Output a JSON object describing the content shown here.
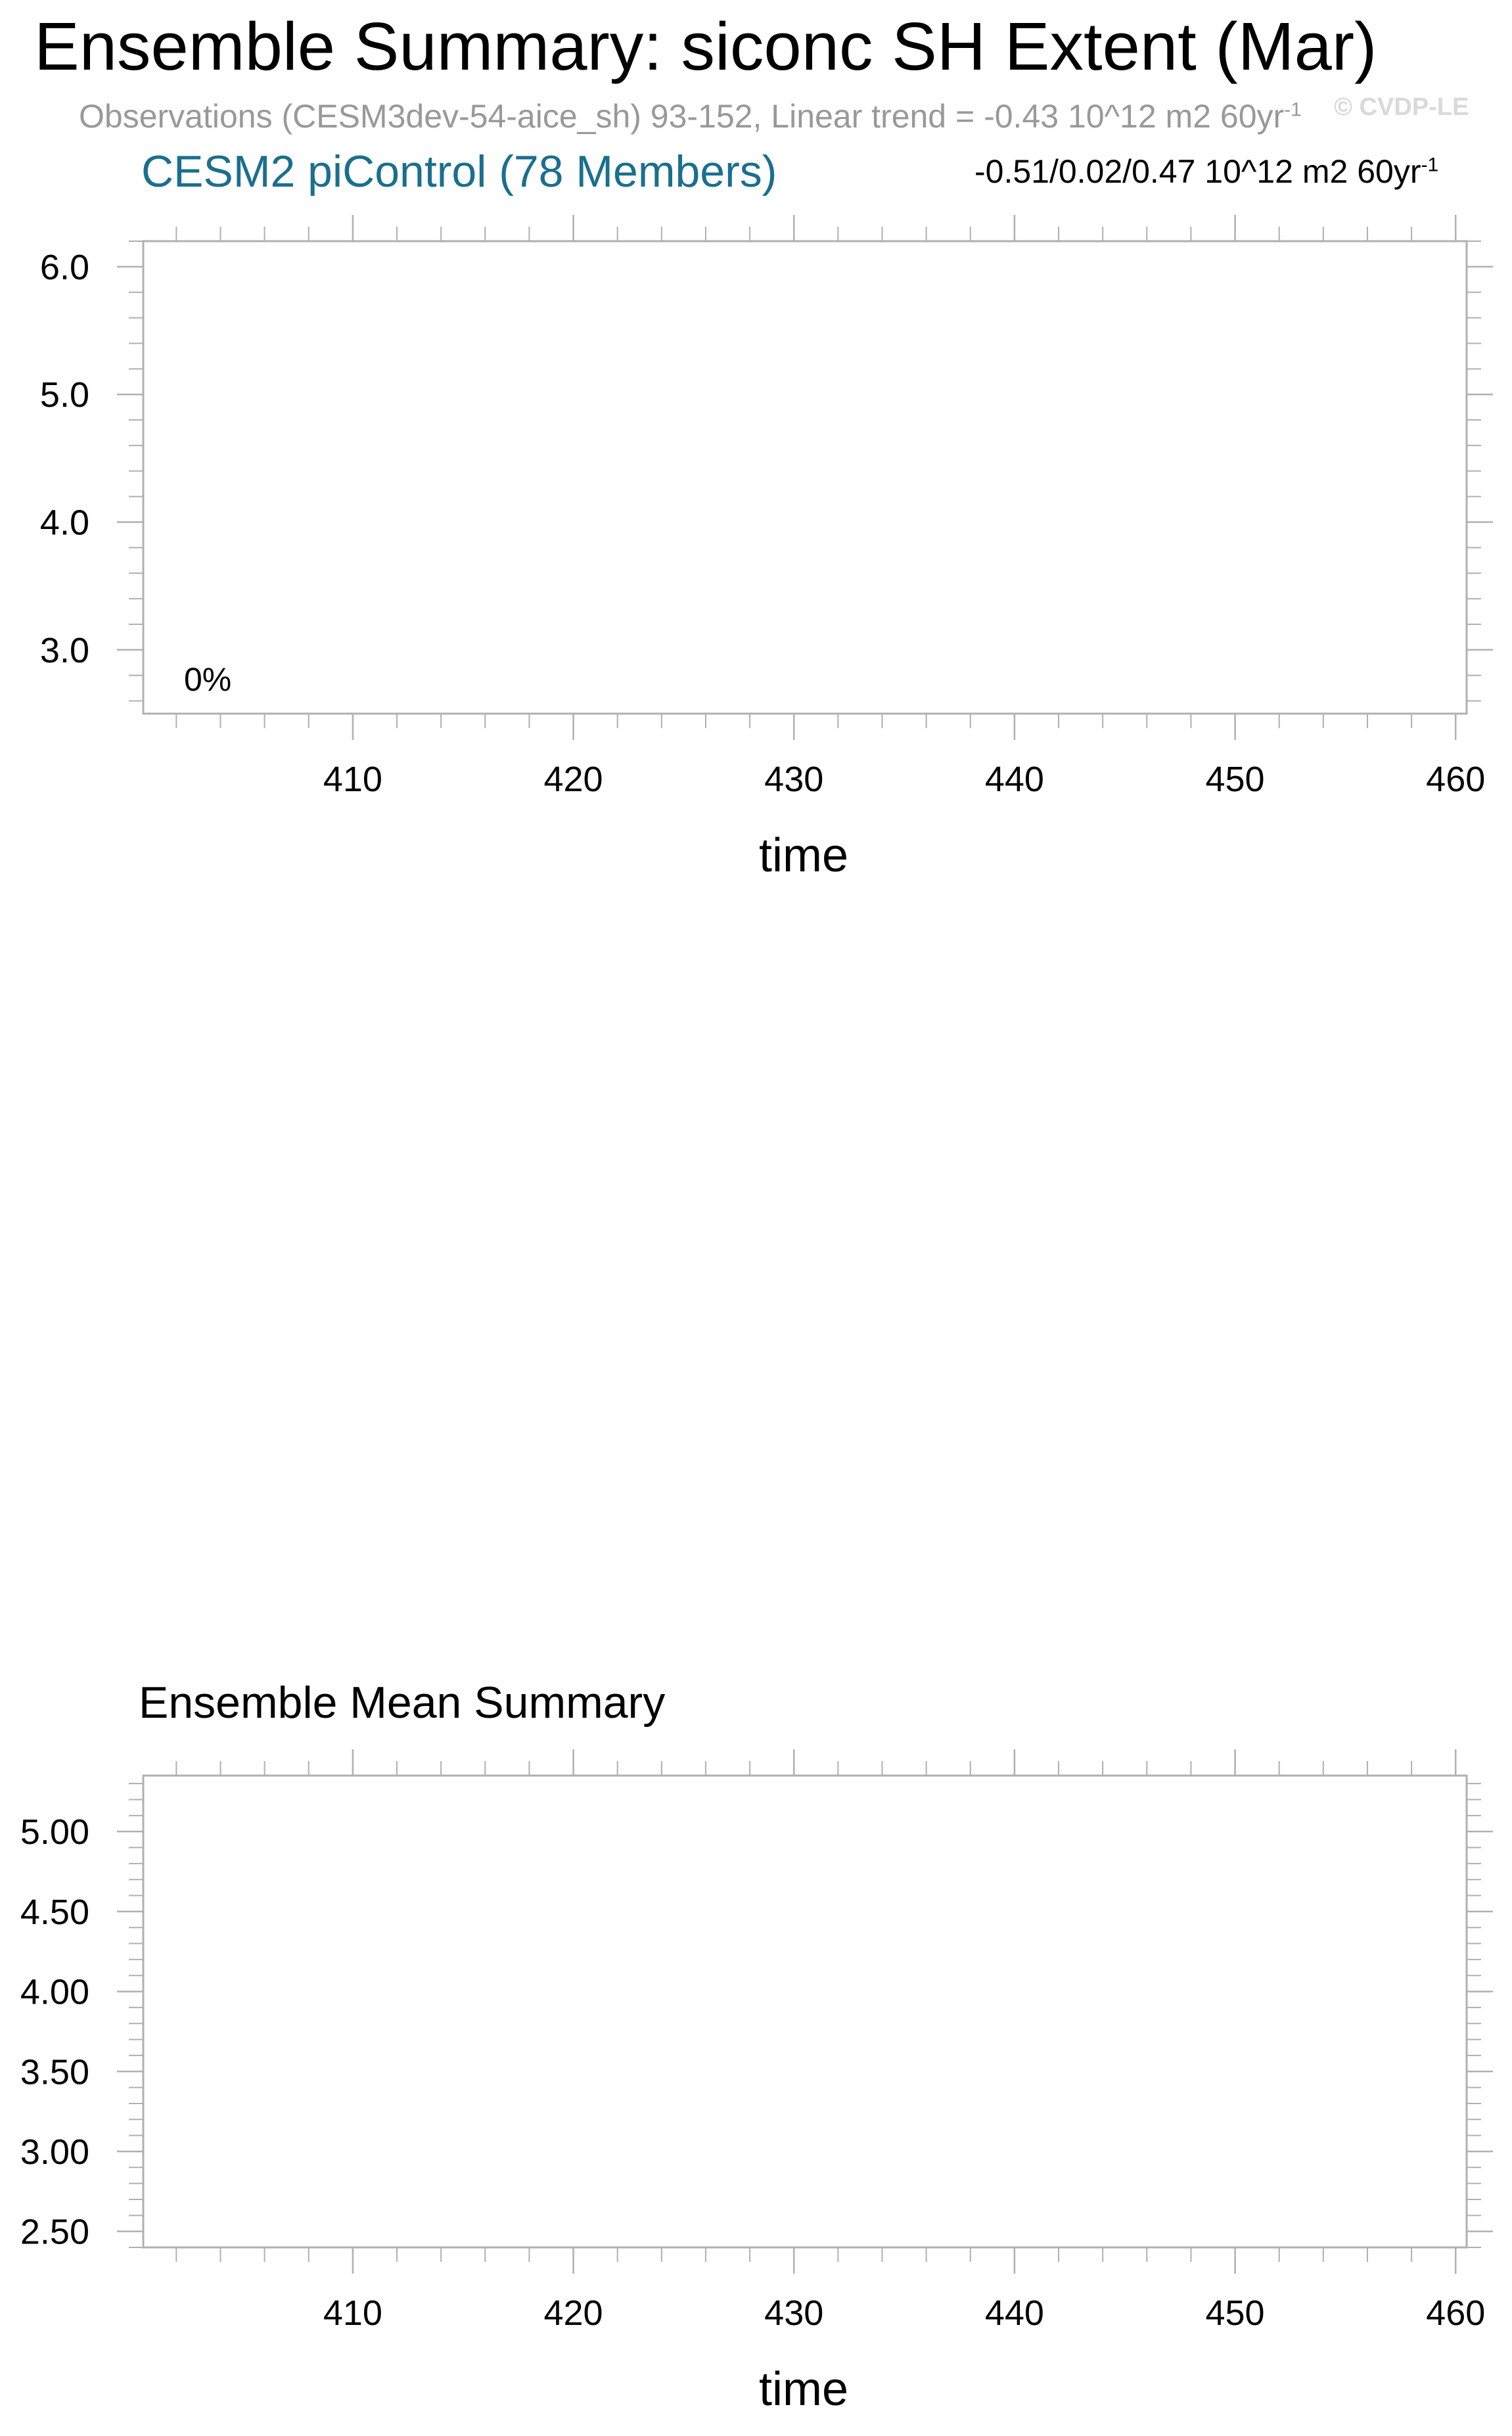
{
  "title": "Ensemble Summary: siconc SH Extent (Mar)",
  "observations": {
    "text": "Observations (CESM3dev-54-aice_sh) 93-152, Linear trend = -0.43 10^12 m2 60yr",
    "superscript": "-1"
  },
  "watermark": "© CVDP-LE",
  "model_label": "CESM2 piControl (78 Members)",
  "trend_range": {
    "text": "-0.51/0.02/0.47 10^12 m2 60yr",
    "superscript": "-1"
  },
  "mean_summary_title": "Ensemble Mean Summary",
  "colors": {
    "model_label": "#1a6f8f",
    "observations": "#999999",
    "frame": "#b0b0b0"
  },
  "chart_data": [
    {
      "type": "line",
      "title": "",
      "xlabel": "time",
      "ylabel": "",
      "xlim": [
        400.5,
        460.5
      ],
      "ylim": [
        2.5,
        6.2
      ],
      "xticks": [
        410,
        420,
        430,
        440,
        450,
        460
      ],
      "xtick_labels": [
        "410",
        "420",
        "430",
        "440",
        "450",
        "460"
      ],
      "yticks": [
        3.0,
        4.0,
        5.0,
        6.0
      ],
      "ytick_labels": [
        "3.0",
        "4.0",
        "5.0",
        "6.0"
      ],
      "annotation": "0%",
      "series": [],
      "grid": false
    },
    {
      "type": "line",
      "title": "Ensemble Mean Summary",
      "xlabel": "time",
      "ylabel": "",
      "xlim": [
        400.5,
        460.5
      ],
      "ylim": [
        2.4,
        5.35
      ],
      "xticks": [
        410,
        420,
        430,
        440,
        450,
        460
      ],
      "xtick_labels": [
        "410",
        "420",
        "430",
        "440",
        "450",
        "460"
      ],
      "yticks": [
        2.5,
        3.0,
        3.5,
        4.0,
        4.5,
        5.0
      ],
      "ytick_labels": [
        "2.50",
        "3.00",
        "3.50",
        "4.00",
        "4.50",
        "5.00"
      ],
      "annotation": "",
      "series": [],
      "grid": false
    }
  ]
}
